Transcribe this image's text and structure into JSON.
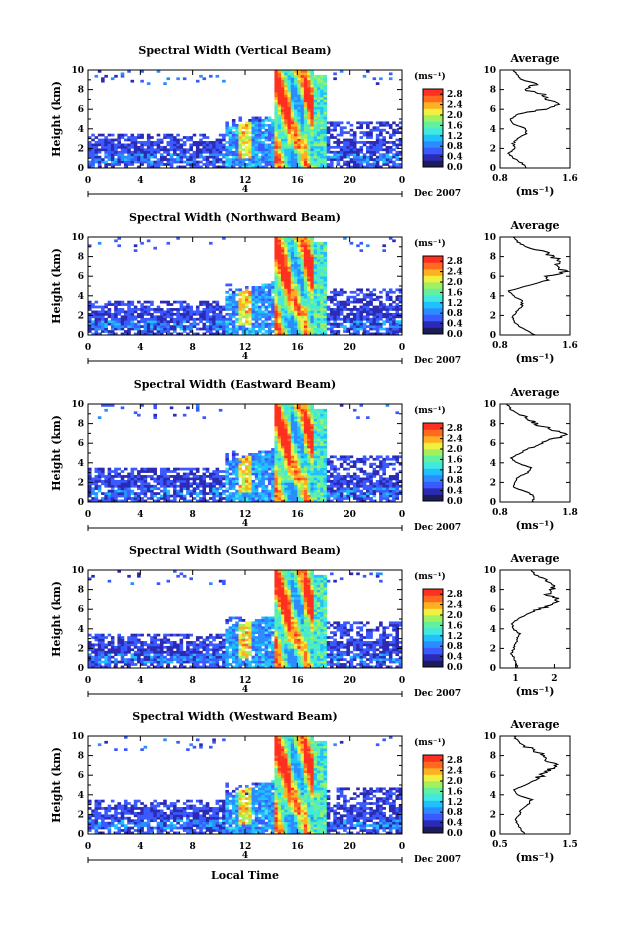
{
  "figure": {
    "bottom_xlabel": "Local Time",
    "ylabel": "Height (km)",
    "date_label": "Dec 2007",
    "day_marker": "4",
    "colorbar_unit": "(ms⁻¹)",
    "avg_title": "Average",
    "avg_xlabel": "(ms⁻¹)"
  },
  "colors": {
    "scale": [
      "#1c1c5a",
      "#2a2ab4",
      "#3a5aff",
      "#2a8cff",
      "#20c0ff",
      "#40e8e0",
      "#60f0a0",
      "#a0f060",
      "#f0f040",
      "#ffb020",
      "#ff6a20",
      "#ff3020"
    ]
  },
  "chart_data": [
    {
      "type": "heatmap",
      "title": "Spectral Width (Vertical Beam)",
      "x_ticks": [
        "0",
        "4",
        "8",
        "12",
        "16",
        "20",
        "0"
      ],
      "y_ticks": [
        "0",
        "2",
        "4",
        "6",
        "8",
        "10"
      ],
      "xlim": [
        0,
        24
      ],
      "ylim": [
        0,
        10
      ],
      "colorbar_ticks": [
        "0.0",
        "0.4",
        "0.8",
        "1.2",
        "1.6",
        "2.0",
        "2.4",
        "2.8"
      ],
      "colorbar_range": [
        0,
        3.0
      ],
      "average_profile": {
        "x_ticks": [
          "0.8",
          "1.6"
        ],
        "xlim": [
          0.8,
          1.6
        ],
        "ylim": [
          0,
          10
        ],
        "heights": [
          0,
          0.5,
          1,
          1.5,
          2,
          2.5,
          3,
          3.5,
          4,
          4.5,
          5,
          5.5,
          6,
          6.5,
          7,
          7.5,
          8,
          8.5,
          9,
          9.5,
          10
        ],
        "values": [
          1.1,
          1.05,
          0.95,
          0.9,
          0.98,
          0.95,
          1.0,
          1.1,
          1.1,
          0.95,
          0.92,
          1.0,
          1.3,
          1.45,
          1.35,
          1.3,
          1.1,
          1.2,
          1.05,
          1.0,
          0.95
        ]
      }
    },
    {
      "type": "heatmap",
      "title": "Spectral Width (Northward Beam)",
      "x_ticks": [
        "0",
        "4",
        "8",
        "12",
        "16",
        "20",
        "0"
      ],
      "y_ticks": [
        "0",
        "2",
        "4",
        "6",
        "8",
        "10"
      ],
      "xlim": [
        0,
        24
      ],
      "ylim": [
        0,
        10
      ],
      "colorbar_ticks": [
        "0.0",
        "0.4",
        "0.8",
        "1.2",
        "1.6",
        "2.0",
        "2.4",
        "2.8"
      ],
      "colorbar_range": [
        0,
        3.0
      ],
      "average_profile": {
        "x_ticks": [
          "0.8",
          "1.6"
        ],
        "xlim": [
          0.8,
          1.6
        ],
        "ylim": [
          0,
          10
        ],
        "heights": [
          0,
          0.5,
          1,
          1.5,
          2,
          2.5,
          3,
          3.5,
          4,
          4.5,
          5,
          5.5,
          6,
          6.5,
          7,
          7.5,
          8,
          8.5,
          9,
          9.5,
          10
        ],
        "values": [
          1.2,
          1.1,
          1.0,
          0.95,
          0.95,
          1.0,
          1.05,
          1.05,
          0.95,
          0.9,
          1.1,
          1.3,
          1.35,
          1.55,
          1.45,
          1.5,
          1.4,
          1.3,
          1.1,
          1.0,
          0.95
        ]
      }
    },
    {
      "type": "heatmap",
      "title": "Spectral Width (Eastward Beam)",
      "x_ticks": [
        "0",
        "4",
        "8",
        "12",
        "16",
        "20",
        "0"
      ],
      "y_ticks": [
        "0",
        "2",
        "4",
        "6",
        "8",
        "10"
      ],
      "xlim": [
        0,
        24
      ],
      "ylim": [
        0,
        10
      ],
      "colorbar_ticks": [
        "0.0",
        "0.4",
        "0.8",
        "1.2",
        "1.6",
        "2.0",
        "2.4",
        "2.8"
      ],
      "colorbar_range": [
        0,
        3.0
      ],
      "average_profile": {
        "x_ticks": [
          "0.8",
          "1.8"
        ],
        "xlim": [
          0.8,
          1.8
        ],
        "ylim": [
          0,
          10
        ],
        "heights": [
          0,
          0.5,
          1,
          1.5,
          2,
          2.5,
          3,
          3.5,
          4,
          4.5,
          5,
          5.5,
          6,
          6.5,
          7,
          7.5,
          8,
          8.5,
          9,
          9.5,
          10
        ],
        "values": [
          1.25,
          1.3,
          1.2,
          1.0,
          1.0,
          1.05,
          1.2,
          1.25,
          1.05,
          0.95,
          1.1,
          1.2,
          1.4,
          1.6,
          1.75,
          1.5,
          1.3,
          1.2,
          1.05,
          0.95,
          0.9
        ]
      }
    },
    {
      "type": "heatmap",
      "title": "Spectral Width (Southward Beam)",
      "x_ticks": [
        "0",
        "4",
        "8",
        "12",
        "16",
        "20",
        "0"
      ],
      "y_ticks": [
        "0",
        "2",
        "4",
        "6",
        "8",
        "10"
      ],
      "xlim": [
        0,
        24
      ],
      "ylim": [
        0,
        10
      ],
      "colorbar_ticks": [
        "0.0",
        "0.4",
        "0.8",
        "1.2",
        "1.6",
        "2.0",
        "2.4",
        "2.8"
      ],
      "colorbar_range": [
        0,
        3.0
      ],
      "average_profile": {
        "x_ticks": [
          "1",
          "2"
        ],
        "xlim": [
          0.6,
          2.4
        ],
        "ylim": [
          0,
          10
        ],
        "heights": [
          0,
          0.5,
          1,
          1.5,
          2,
          2.5,
          3,
          3.5,
          4,
          4.5,
          5,
          5.5,
          6,
          6.5,
          7,
          7.5,
          8,
          8.5,
          9,
          9.5,
          10
        ],
        "values": [
          1.05,
          1.0,
          0.95,
          0.9,
          0.95,
          1.0,
          1.05,
          1.1,
          0.95,
          0.9,
          1.05,
          1.3,
          1.6,
          1.9,
          2.1,
          1.8,
          1.9,
          2.0,
          1.8,
          1.5,
          1.4
        ]
      }
    },
    {
      "type": "heatmap",
      "title": "Spectral Width (Westward Beam)",
      "x_ticks": [
        "0",
        "4",
        "8",
        "12",
        "16",
        "20",
        "0"
      ],
      "y_ticks": [
        "0",
        "2",
        "4",
        "6",
        "8",
        "10"
      ],
      "xlim": [
        0,
        24
      ],
      "ylim": [
        0,
        10
      ],
      "colorbar_ticks": [
        "0.0",
        "0.4",
        "0.8",
        "1.2",
        "1.6",
        "2.0",
        "2.4",
        "2.8"
      ],
      "colorbar_range": [
        0,
        3.0
      ],
      "average_profile": {
        "x_ticks": [
          "0.5",
          "1.5"
        ],
        "xlim": [
          0.5,
          1.5
        ],
        "ylim": [
          0,
          10
        ],
        "heights": [
          0,
          0.5,
          1,
          1.5,
          2,
          2.5,
          3,
          3.5,
          4,
          4.5,
          5,
          5.5,
          6,
          6.5,
          7,
          7.5,
          8,
          8.5,
          9,
          9.5,
          10
        ],
        "values": [
          0.85,
          0.8,
          0.75,
          0.72,
          0.78,
          0.8,
          0.9,
          0.95,
          0.75,
          0.7,
          0.85,
          1.0,
          1.1,
          1.2,
          1.3,
          1.15,
          1.1,
          1.0,
          0.85,
          0.75,
          0.7
        ]
      }
    }
  ]
}
